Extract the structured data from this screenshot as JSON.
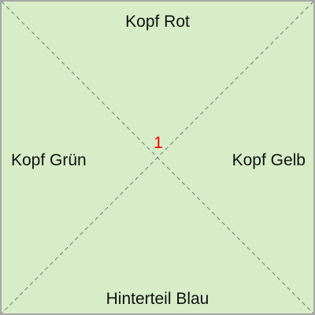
{
  "tile": {
    "number": "1",
    "number_color": "#ff0000",
    "background_color": "#d6edc8",
    "border_color": "#a7a7a7",
    "diagonal_color": "#777777",
    "edges": {
      "top": "Kopf Rot",
      "left": "Kopf Grün",
      "right": "Kopf Gelb",
      "bottom": "Hinterteil Blau"
    }
  }
}
